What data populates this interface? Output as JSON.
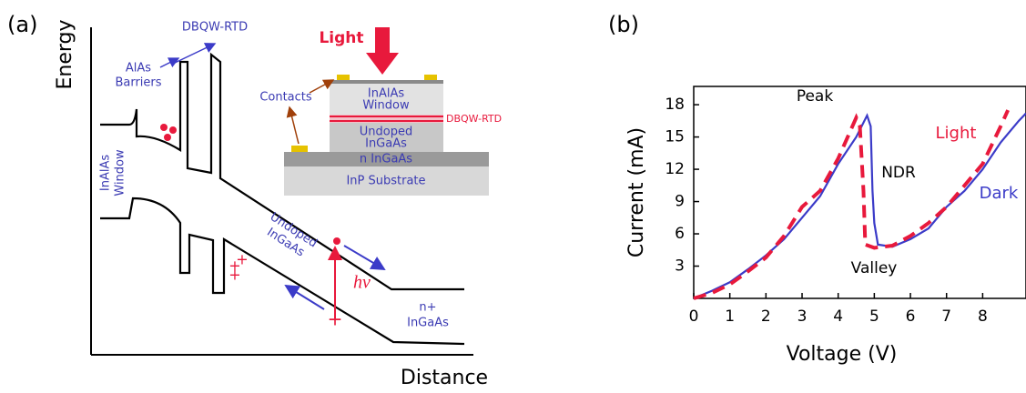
{
  "panel_a": {
    "label": "(a)",
    "y_axis": "Energy",
    "x_axis": "Distance",
    "rtd": "DBQW-RTD",
    "barriers": [
      "AlAs",
      "Barriers"
    ],
    "window": [
      "InAlAs",
      "Window"
    ],
    "undoped": [
      "Undoped",
      "InGaAs"
    ],
    "photon": "hν",
    "contact_layer": [
      "n+",
      "InGaAs"
    ],
    "inset": {
      "light": "Light",
      "contacts": "Contacts",
      "window": [
        "InAlAs",
        "Window"
      ],
      "rtd": "DBQW-RTD",
      "undoped": [
        "Undoped",
        "InGaAs"
      ],
      "n_layer": "n InGaAs",
      "substrate": "InP  Substrate"
    }
  },
  "chart_data": {
    "type": "line",
    "panel_label": "(b)",
    "x_label": "Voltage (V)",
    "y_label": "Current (mA)",
    "xlim": [
      0,
      9.2
    ],
    "ylim": [
      0,
      19.7
    ],
    "xticks": [
      0,
      1,
      2,
      3,
      4,
      5,
      6,
      7,
      8
    ],
    "yticks": [
      3,
      6,
      9,
      12,
      15,
      18
    ],
    "annotations": [
      "Peak",
      "NDR",
      "Valley"
    ],
    "series": [
      {
        "name": "Dark",
        "color": "#3b3bc8",
        "linestyle": "solid",
        "x": [
          0,
          0.5,
          1,
          1.5,
          2,
          2.5,
          3,
          3.5,
          4,
          4.5,
          4.8,
          4.9,
          4.95,
          5,
          5.1,
          5.5,
          6,
          6.5,
          7,
          7.5,
          8,
          8.5,
          9,
          9.2
        ],
        "values": [
          0,
          0.7,
          1.5,
          2.7,
          4,
          5.5,
          7.5,
          9.5,
          12.5,
          15,
          17,
          16,
          10,
          7,
          5,
          4.8,
          5.5,
          6.5,
          8.5,
          10,
          12,
          14.5,
          16.5,
          17.2
        ]
      },
      {
        "name": "Light",
        "color": "#e8193c",
        "linestyle": "dashed",
        "x": [
          0,
          0.5,
          1,
          1.5,
          2,
          2.5,
          3,
          3.5,
          4,
          4.5,
          4.6,
          4.7,
          4.75,
          5,
          5.5,
          6,
          6.5,
          7,
          7.5,
          8,
          8.5,
          8.7
        ],
        "values": [
          0,
          0.5,
          1.3,
          2.5,
          3.8,
          5.8,
          8.5,
          10,
          13,
          16.8,
          16,
          10,
          5,
          4.7,
          4.9,
          5.8,
          7,
          8.5,
          10.5,
          12.5,
          16,
          17.5
        ]
      }
    ]
  }
}
